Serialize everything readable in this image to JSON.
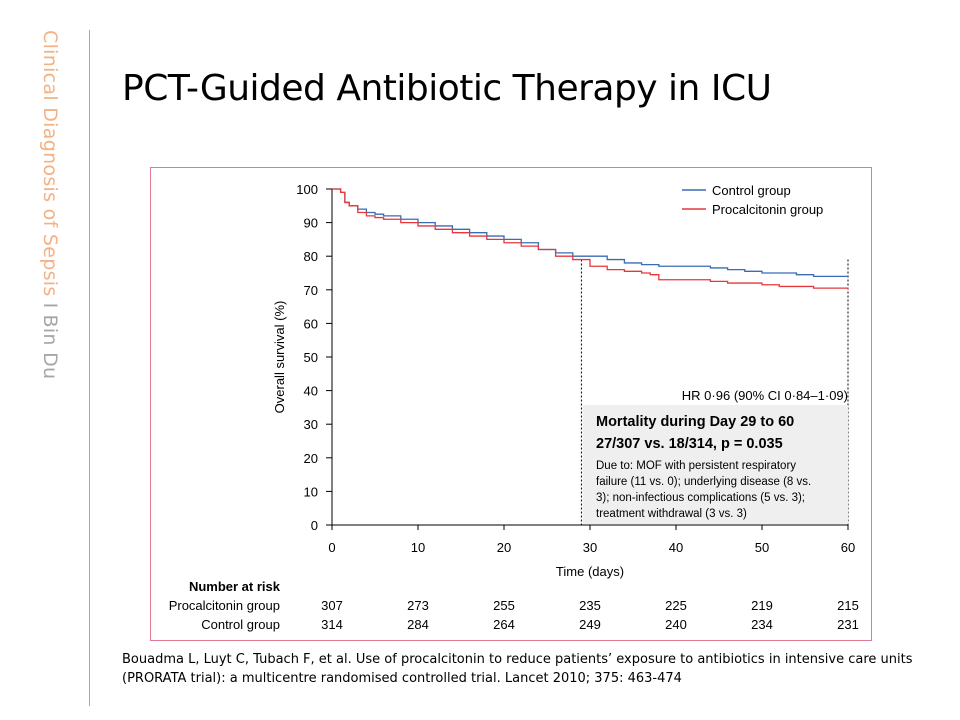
{
  "sidebar": {
    "text_main": "Clinical Diagnosis of Sepsis",
    "separator": "I",
    "author": "Bin Du",
    "color_main": "#f4b183",
    "color_sep": "#a6a6a6"
  },
  "slide": {
    "title": "PCT-Guided Antibiotic Therapy in ICU"
  },
  "citation": {
    "line1": "Bouadma L, Luyt C, Tubach F, et al. Use of procalcitonin to reduce patients’ exposure to antibiotics in intensive care units",
    "line2": "(PRORATA trial): a multicentre randomised controlled trial. Lancet 2010; 375: 463-474"
  },
  "chart_data": {
    "type": "line",
    "xlabel": "Time (days)",
    "ylabel": "Overall survival (%)",
    "xlim": [
      0,
      60
    ],
    "ylim": [
      0,
      100
    ],
    "xticks": [
      0,
      10,
      20,
      30,
      40,
      50,
      60
    ],
    "yticks": [
      0,
      10,
      20,
      30,
      40,
      50,
      60,
      70,
      80,
      90,
      100
    ],
    "legend_position": "top-right",
    "hr_text": "HR 0·96 (90% CI 0·84–1·09)",
    "reference_days": [
      29,
      60
    ],
    "series": [
      {
        "name": "Control group",
        "color": "#3a6bb5",
        "points": [
          [
            0,
            100
          ],
          [
            1,
            99
          ],
          [
            1.5,
            96
          ],
          [
            2,
            95
          ],
          [
            3,
            94
          ],
          [
            4,
            93
          ],
          [
            5,
            92.5
          ],
          [
            6,
            92
          ],
          [
            8,
            91
          ],
          [
            10,
            90
          ],
          [
            12,
            89
          ],
          [
            14,
            88
          ],
          [
            16,
            87
          ],
          [
            18,
            86
          ],
          [
            20,
            85
          ],
          [
            22,
            84
          ],
          [
            24,
            82
          ],
          [
            26,
            81
          ],
          [
            28,
            80
          ],
          [
            30,
            80
          ],
          [
            32,
            79
          ],
          [
            34,
            78
          ],
          [
            36,
            77.5
          ],
          [
            38,
            77
          ],
          [
            40,
            77
          ],
          [
            42,
            77
          ],
          [
            44,
            76.5
          ],
          [
            46,
            76
          ],
          [
            48,
            75.5
          ],
          [
            50,
            75
          ],
          [
            52,
            75
          ],
          [
            54,
            74.5
          ],
          [
            56,
            74
          ],
          [
            58,
            74
          ],
          [
            60,
            74
          ]
        ]
      },
      {
        "name": "Procalcitonin group",
        "color": "#e8373a",
        "points": [
          [
            0,
            100
          ],
          [
            1,
            99
          ],
          [
            1.5,
            96
          ],
          [
            2,
            95
          ],
          [
            3,
            93
          ],
          [
            4,
            92
          ],
          [
            5,
            91.5
          ],
          [
            6,
            91
          ],
          [
            8,
            90
          ],
          [
            10,
            89
          ],
          [
            12,
            88
          ],
          [
            14,
            87
          ],
          [
            16,
            86
          ],
          [
            18,
            85
          ],
          [
            20,
            84
          ],
          [
            22,
            83
          ],
          [
            24,
            82
          ],
          [
            26,
            80
          ],
          [
            28,
            79
          ],
          [
            29,
            79
          ],
          [
            30,
            77
          ],
          [
            32,
            76
          ],
          [
            34,
            75.5
          ],
          [
            36,
            75
          ],
          [
            37,
            74.5
          ],
          [
            38,
            73
          ],
          [
            40,
            73
          ],
          [
            42,
            73
          ],
          [
            44,
            72.5
          ],
          [
            46,
            72
          ],
          [
            48,
            72
          ],
          [
            50,
            71.5
          ],
          [
            52,
            71
          ],
          [
            54,
            71
          ],
          [
            56,
            70.5
          ],
          [
            58,
            70.5
          ],
          [
            60,
            70
          ]
        ]
      }
    ],
    "annotation": {
      "title_line1": "Mortality during Day 29 to 60",
      "title_line2": "27/307 vs. 18/314, p = 0.035",
      "body": [
        "Due to: MOF with persistent respiratory",
        "failure (11 vs. 0); underlying disease (8 vs.",
        "3); non-infectious complications (5 vs. 3);",
        "treatment withdrawal (3 vs. 3)"
      ]
    },
    "risk_table": {
      "header": "Number at risk",
      "days": [
        0,
        10,
        20,
        30,
        40,
        50,
        60
      ],
      "rows": [
        {
          "label": "Procalcitonin group",
          "values": [
            307,
            273,
            255,
            235,
            225,
            219,
            215
          ]
        },
        {
          "label": "Control group",
          "values": [
            314,
            284,
            264,
            249,
            240,
            234,
            231
          ]
        }
      ]
    }
  }
}
